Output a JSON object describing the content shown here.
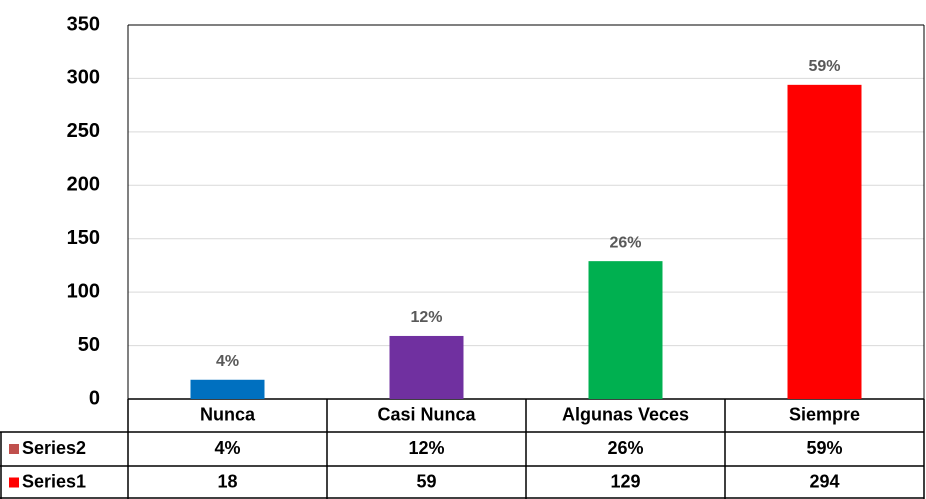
{
  "chart_data": {
    "type": "bar",
    "categories": [
      "Nunca",
      "Casi Nunca",
      "Algunas Veces",
      "Siempre"
    ],
    "series": [
      {
        "name": "Series2",
        "color": "#c0504d",
        "values": [
          4,
          12,
          26,
          59
        ],
        "value_labels": [
          "4%",
          "12%",
          "26%",
          "59%"
        ]
      },
      {
        "name": "Series1",
        "color": "#ff0000",
        "colors": [
          "#0070c0",
          "#7030a0",
          "#00b050",
          "#ff0000"
        ],
        "values": [
          18,
          59,
          129,
          294
        ]
      }
    ],
    "ylim": [
      0,
      350
    ],
    "yticks": [
      0,
      50,
      100,
      150,
      200,
      250,
      300,
      350
    ],
    "grid": true
  }
}
